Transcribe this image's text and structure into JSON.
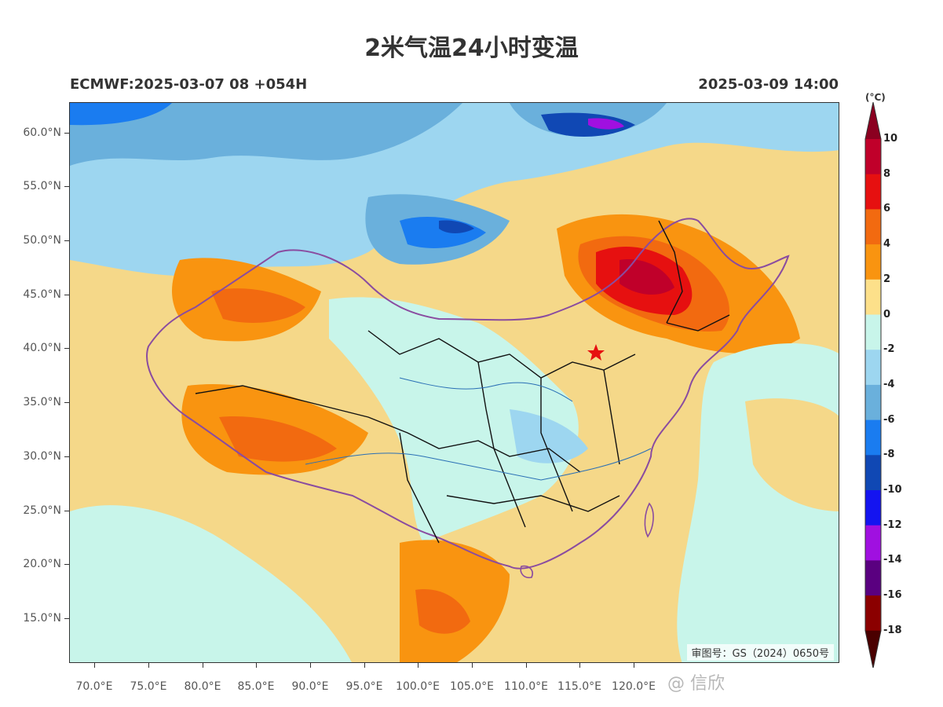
{
  "header": {
    "title": "2米气温24小时变温",
    "model_run": "ECMWF:2025-03-07 08 +054H",
    "valid_time": "2025-03-09 14:00"
  },
  "axes": {
    "lat_labels": [
      "60.0°N",
      "55.0°N",
      "50.0°N",
      "45.0°N",
      "40.0°N",
      "35.0°N",
      "30.0°N",
      "25.0°N",
      "20.0°N",
      "15.0°N"
    ],
    "lon_labels": [
      "70.0°E",
      "75.0°E",
      "80.0°E",
      "85.0°E",
      "90.0°E",
      "95.0°E",
      "100.0°E",
      "105.0°E",
      "110.0°E",
      "115.0°E",
      "120.0°E"
    ]
  },
  "map": {
    "approval_number": "审图号：GS（2024）0650号",
    "marker": "star-marker"
  },
  "colorbar": {
    "unit": "(°C)",
    "labels": [
      "10",
      "8",
      "6",
      "4",
      "2",
      "0",
      "-2",
      "-4",
      "-6",
      "-8",
      "-10",
      "-12",
      "-14",
      "-16",
      "-18"
    ],
    "colors": [
      "#8b0020",
      "#c0002a",
      "#e61010",
      "#f26a10",
      "#f99410",
      "#fde08a",
      "#c8f5ea",
      "#9dd6f0",
      "#6ab0dc",
      "#1a7cf0",
      "#1048b4",
      "#1414f0",
      "#a010e0",
      "#5a0080",
      "#8b0000",
      "#4a0000"
    ]
  },
  "watermark": "@ 信欣"
}
